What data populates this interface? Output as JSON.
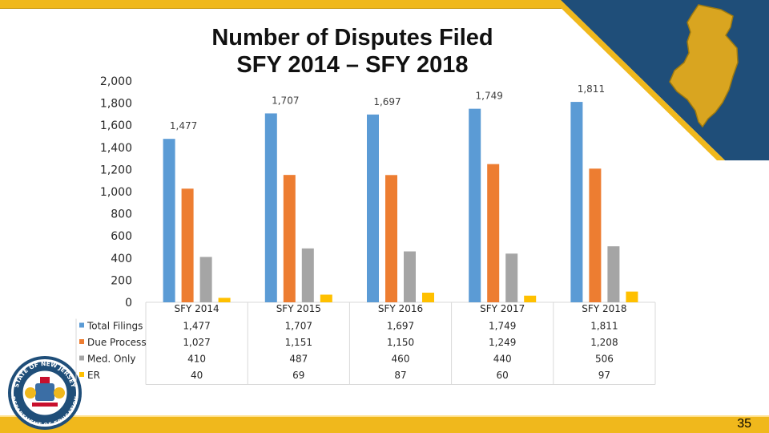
{
  "slide": {
    "title_line1": "Number of Disputes Filed",
    "title_line2": "SFY 2014 – SFY 2018",
    "page_number": "35",
    "seal_label": "New Jersey Department of Education seal",
    "seal_text_top": "STATE OF NEW JERSEY",
    "seal_text_bottom": "DEPARTMENT OF EDUCATION",
    "colors": {
      "top_bar": "#F0B81C",
      "navy": "#1F4E79",
      "bottom_bar": "#F0B81C",
      "nj_map": "#D9A520"
    }
  },
  "chart_data": {
    "type": "bar",
    "categories": [
      "SFY 2014",
      "SFY 2015",
      "SFY 2016",
      "SFY 2017",
      "SFY 2018"
    ],
    "series": [
      {
        "name": "Total Filings",
        "values": [
          1477,
          1707,
          1697,
          1749,
          1811
        ],
        "color": "#5B9BD5",
        "display": [
          "1,477",
          "1,707",
          "1,697",
          "1,749",
          "1,811"
        ]
      },
      {
        "name": "Due Process",
        "values": [
          1027,
          1151,
          1150,
          1249,
          1208
        ],
        "color": "#ED7D31",
        "display": [
          "1,027",
          "1,151",
          "1,150",
          "1,249",
          "1,208"
        ]
      },
      {
        "name": "Med. Only",
        "values": [
          410,
          487,
          460,
          440,
          506
        ],
        "color": "#A5A5A5",
        "display": [
          "410",
          "487",
          "460",
          "440",
          "506"
        ]
      },
      {
        "name": "ER",
        "values": [
          40,
          69,
          87,
          60,
          97
        ],
        "color": "#FFC000",
        "display": [
          "40",
          "69",
          "87",
          "60",
          "97"
        ]
      }
    ],
    "data_labels": [
      "1,477",
      "1,707",
      "1,697",
      "1,749",
      "1,811"
    ],
    "y_ticks": [
      "0",
      "200",
      "400",
      "600",
      "800",
      "1,000",
      "1,200",
      "1,400",
      "1,600",
      "1,800",
      "2,000"
    ],
    "ylim": [
      0,
      2000
    ],
    "grid": false,
    "legend": "data table below chart"
  }
}
